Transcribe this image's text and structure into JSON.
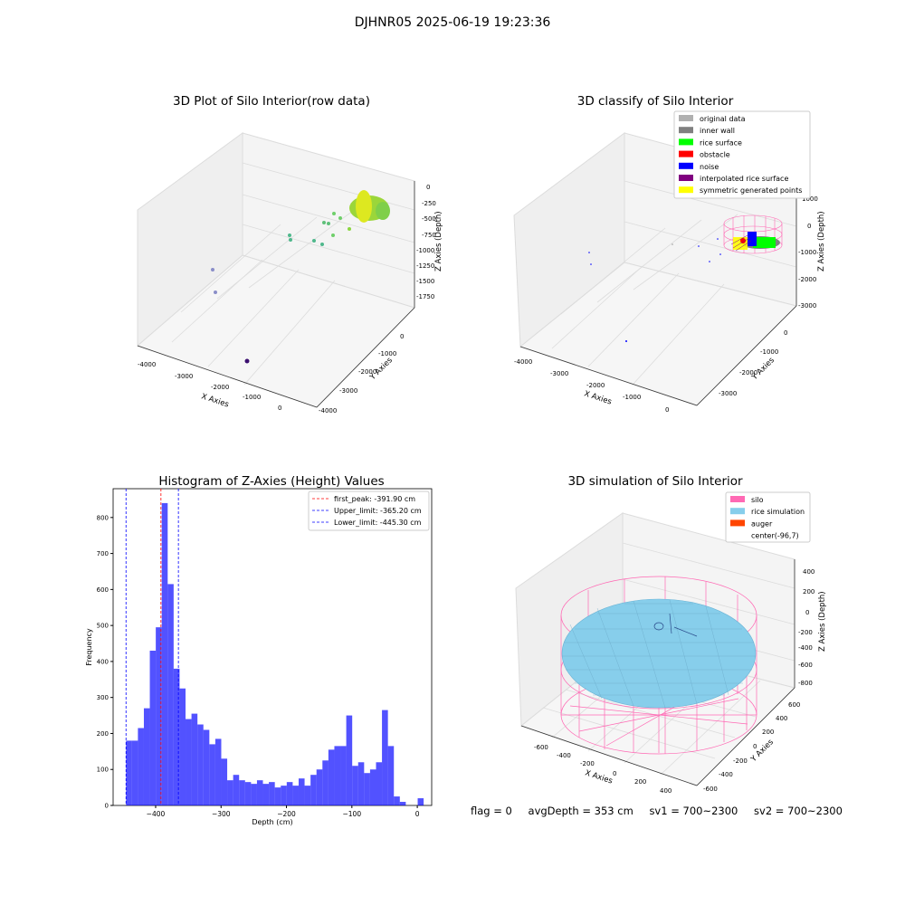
{
  "figure": {
    "suptitle": "DJHNR05 2025-06-19 19:23:36",
    "footer": {
      "flag": "flag = 0",
      "avg_depth": "avgDepth = 353 cm",
      "sv1": "sv1 = 700~2300",
      "sv2": "sv2 = 700~2300"
    }
  },
  "chart_data": [
    {
      "type": "scatter",
      "title": "3D Plot of Silo Interior(row data)",
      "xlabel": "X Axies",
      "ylabel": "Y Axies",
      "zlabel": "Z Axies (Depth)",
      "x_ticks": [
        "-4000",
        "-3000",
        "-2000",
        "-1000",
        "0"
      ],
      "y_ticks": [
        "0",
        "-1000",
        "-2000",
        "-3000",
        "-4000"
      ],
      "z_ticks": [
        "0",
        "-250",
        "-500",
        "-750",
        "-1000",
        "-1250",
        "-1500",
        "-1750"
      ]
    },
    {
      "type": "scatter",
      "title": "3D classify of Silo Interior",
      "xlabel": "X Axies",
      "ylabel": "Y Axies",
      "zlabel": "Z Axies (Depth)",
      "x_ticks": [
        "-4000",
        "-3000",
        "-2000",
        "-1000",
        "0"
      ],
      "y_ticks": [
        "0",
        "-1000",
        "-2000",
        "-3000"
      ],
      "z_ticks": [
        "1000",
        "0",
        "-1000",
        "-2000",
        "-3000"
      ],
      "legend": [
        {
          "label": "original data",
          "color": "#b0b0b0"
        },
        {
          "label": "inner wall",
          "color": "#808080"
        },
        {
          "label": "rice surface",
          "color": "#00ff00"
        },
        {
          "label": "obstacle",
          "color": "#ff0000"
        },
        {
          "label": "noise",
          "color": "#0000ff"
        },
        {
          "label": "interpolated rice surface",
          "color": "#800080"
        },
        {
          "label": "symmetric generated points",
          "color": "#ffff00"
        }
      ]
    },
    {
      "type": "bar",
      "title": "Histogram of Z-Axies (Height) Values",
      "xlabel": "Depth (cm)",
      "ylabel": "Frequency",
      "xlim": [
        -465,
        22
      ],
      "ylim": [
        0,
        880
      ],
      "x_ticks": [
        -400,
        -300,
        -200,
        -100,
        0
      ],
      "y_ticks": [
        0,
        100,
        200,
        300,
        400,
        500,
        600,
        700,
        800
      ],
      "bin_start": -445.3,
      "bin_width": 9.1,
      "values": [
        180,
        180,
        215,
        270,
        430,
        495,
        840,
        615,
        380,
        325,
        240,
        255,
        225,
        210,
        170,
        185,
        130,
        70,
        85,
        70,
        65,
        60,
        70,
        60,
        65,
        50,
        55,
        65,
        55,
        75,
        55,
        85,
        100,
        125,
        155,
        165,
        165,
        250,
        110,
        120,
        90,
        100,
        120,
        265,
        165,
        25,
        10,
        0,
        0,
        20
      ],
      "bar_color": "#0000ff",
      "vlines": [
        {
          "x": -391.9,
          "color": "#ff0000",
          "label": "first_peak: -391.90 cm"
        },
        {
          "x": -365.2,
          "color": "#0000ff",
          "label": "Upper_limit: -365.20 cm"
        },
        {
          "x": -445.3,
          "color": "#0000ff",
          "label": "Lower_limit: -445.30 cm"
        }
      ],
      "legend_position": "top-right"
    },
    {
      "type": "scatter",
      "title": "3D simulation of Silo Interior",
      "xlabel": "X Axies",
      "ylabel": "Y Axies",
      "zlabel": "Z Axies (Depth)",
      "x_ticks": [
        "-600",
        "-400",
        "-200",
        "0",
        "200",
        "400"
      ],
      "y_ticks": [
        "600",
        "400",
        "200",
        "0",
        "-200",
        "-400",
        "-600"
      ],
      "z_ticks": [
        "400",
        "200",
        "0",
        "-200",
        "-400",
        "-600",
        "-800"
      ],
      "legend": [
        {
          "label": "silo",
          "color": "#ff69b4"
        },
        {
          "label": "rice simulation",
          "color": "#87ceeb"
        },
        {
          "label": "auger",
          "color": "#ff4500"
        },
        {
          "label": "center(-96,7)",
          "color": ""
        }
      ]
    }
  ]
}
